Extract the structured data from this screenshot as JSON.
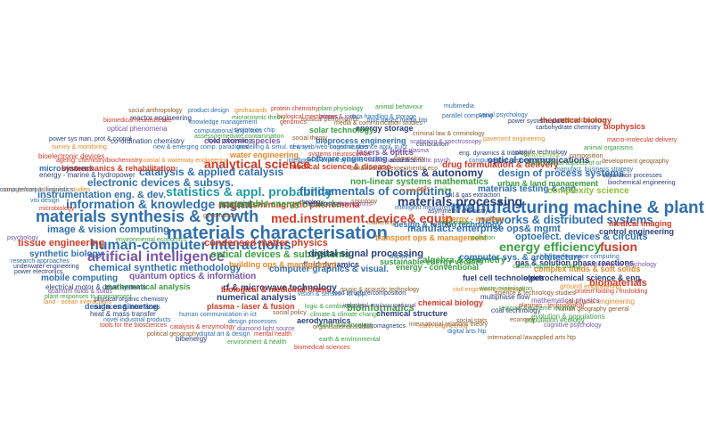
{
  "palette": {
    "blue": "#2f6fb0",
    "green": "#3a9e3f",
    "red": "#d43a25",
    "orange": "#e8892b",
    "purple": "#7a55a8",
    "teal": "#1e9aa5",
    "navy": "#2a3f7a",
    "lime": "#8bbf35",
    "pink": "#c64b8c",
    "brown": "#8b5a2b"
  },
  "words": [
    {
      "text": "materials characterisation",
      "color": "#2f6fb0"
    },
    {
      "text": "manufacturing machine & plant",
      "color": "#2f6fb0"
    },
    {
      "text": "materials synthesis & growth",
      "color": "#2f6fb0"
    },
    {
      "text": "artificial intelligence",
      "color": "#7a55a8"
    },
    {
      "text": "human-computer interactions",
      "color": "#2f6fb0"
    },
    {
      "text": "med.instrument.device& equip.",
      "color": "#d43a25"
    },
    {
      "text": "statistics & appl. probability",
      "color": "#1e9aa5"
    },
    {
      "text": "information & knowledge mgmt",
      "color": "#2f6fb0"
    },
    {
      "text": "networks & distributed systems",
      "color": "#2f6fb0"
    },
    {
      "text": "materials processing",
      "color": "#2a3f7a"
    },
    {
      "text": "fundamentals of computing",
      "color": "#2f6fb0"
    },
    {
      "text": "energy efficiency",
      "color": "#3a9e3f"
    },
    {
      "text": "analytical science",
      "color": "#d43a25"
    },
    {
      "text": "catalysis & applied catalysis",
      "color": "#2f6fb0"
    },
    {
      "text": "robotics & autonomy",
      "color": "#2a3f7a"
    },
    {
      "text": "electronic devices & subsys.",
      "color": "#2f6fb0"
    },
    {
      "text": "optoelect. devices & circuits",
      "color": "#2f6fb0"
    },
    {
      "text": "manufact. enterprise ops& mgmt",
      "color": "#2f6fb0"
    },
    {
      "text": "design of process systems",
      "color": "#2f6fb0"
    },
    {
      "text": "fusion",
      "color": "#d43a25"
    },
    {
      "text": "image & vision computing",
      "color": "#2f6fb0"
    },
    {
      "text": "condensed matter physics",
      "color": "#d43a25"
    },
    {
      "text": "chemical synthetic methodology",
      "color": "#2f6fb0"
    },
    {
      "text": "optical devices & subsystems",
      "color": "#3a9e3f"
    },
    {
      "text": "digital signal processing",
      "color": "#2a3f7a"
    },
    {
      "text": "magnetism/magnetic phenomena",
      "color": "#d43a25"
    },
    {
      "text": "sustainable energy networks",
      "color": "#3a9e3f"
    },
    {
      "text": "non-linear systems mathematics",
      "color": "#3a9e3f"
    },
    {
      "text": "materials testing & eng.",
      "color": "#2f6fb0"
    },
    {
      "text": "complexity science",
      "color": "#8bbf35"
    },
    {
      "text": "drug formulation & delivery",
      "color": "#d43a25"
    },
    {
      "text": "optical communications",
      "color": "#2a3f7a"
    },
    {
      "text": "instrumentation eng. & dev.",
      "color": "#2f6fb0"
    },
    {
      "text": "tissue engineering",
      "color": "#d43a25"
    },
    {
      "text": "synthetic biology",
      "color": "#2f6fb0"
    },
    {
      "text": "mobile computing",
      "color": "#2f6fb0"
    },
    {
      "text": "quantum optics & information",
      "color": "#7a55a8"
    },
    {
      "text": "computer graphics & visual.",
      "color": "#2f6fb0"
    },
    {
      "text": "algebra & geometry",
      "color": "#3a9e3f"
    },
    {
      "text": "computer sys. & architecture",
      "color": "#2f6fb0"
    },
    {
      "text": "gas & solution phase reactions",
      "color": "#2a3f7a"
    },
    {
      "text": "complex fluids & soft solids",
      "color": "#e8892b"
    },
    {
      "text": "fluid dynamics",
      "color": "#2a3f7a"
    },
    {
      "text": "building ops & management",
      "color": "#e8892b"
    },
    {
      "text": "sustainable energy vectors",
      "color": "#3a9e3f"
    },
    {
      "text": "fuel cell technologies",
      "color": "#2a3f7a"
    },
    {
      "text": "electrochemical science & eng.",
      "color": "#2a3f7a"
    },
    {
      "text": "medical imaging",
      "color": "#d43a25"
    },
    {
      "text": "control engineering",
      "color": "#2a3f7a"
    },
    {
      "text": "biomaterials",
      "color": "#d43a25"
    },
    {
      "text": "bioinformatics",
      "color": "#3a9e3f"
    },
    {
      "text": "numerical analysis",
      "color": "#2a3f7a"
    },
    {
      "text": "rf & microwave technology",
      "color": "#2a3f7a"
    },
    {
      "text": "biological & medicinal chem.",
      "color": "#d43a25"
    },
    {
      "text": "mathematical analysis",
      "color": "#3a9e3f"
    },
    {
      "text": "design engineering",
      "color": "#2f6fb0"
    },
    {
      "text": "plasma - laser & fusion",
      "color": "#d43a25"
    },
    {
      "text": "chemical structure",
      "color": "#2a3f7a"
    },
    {
      "text": "chemical biology",
      "color": "#d43a25"
    },
    {
      "text": "aerodynamics",
      "color": "#2a3f7a"
    },
    {
      "text": "energy - conventional",
      "color": "#3a9e3f"
    },
    {
      "text": "energy - nuclear",
      "color": "#e8892b"
    },
    {
      "text": "transport ops & management",
      "color": "#e8892b"
    },
    {
      "text": "design & testing technology",
      "color": "#2f6fb0"
    },
    {
      "text": "microsystems",
      "color": "#2f6fb0"
    },
    {
      "text": "biomechanics & rehabilitation",
      "color": "#d43a25"
    },
    {
      "text": "water engineering",
      "color": "#e8892b"
    },
    {
      "text": "medical science & disease",
      "color": "#d43a25"
    },
    {
      "text": "software engineering",
      "color": "#2f6fb0"
    },
    {
      "text": "urban & land management",
      "color": "#3a9e3f"
    },
    {
      "text": "energy storage",
      "color": "#2a3f7a"
    },
    {
      "text": "solar technology",
      "color": "#3a9e3f"
    },
    {
      "text": "bioprocess engineering",
      "color": "#2f6fb0"
    },
    {
      "text": "lasers & optics",
      "color": "#7a55a8"
    },
    {
      "text": "cold atomic species",
      "color": "#7a55a8"
    },
    {
      "text": "theoretical biology",
      "color": "#d43a25"
    },
    {
      "text": "multiphase flow",
      "color": "#2a3f7a"
    },
    {
      "text": "ground engineering",
      "color": "#e8892b"
    },
    {
      "text": "biophysics",
      "color": "#d43a25"
    },
    {
      "text": "heat & mass transfer",
      "color": "#2a3f7a"
    },
    {
      "text": "surfaces & interfaces",
      "color": "#2a3f7a"
    },
    {
      "text": "bioenergy",
      "color": "#2a3f7a"
    },
    {
      "text": "structural engineering",
      "color": "#e8892b"
    },
    {
      "text": "reactor engineering",
      "color": "#2a3f7a"
    },
    {
      "text": "optical phenomena",
      "color": "#7a55a8"
    },
    {
      "text": "co-ordination chemistry",
      "color": "#2a3f7a"
    },
    {
      "text": "bioelectronic devices",
      "color": "#d43a25"
    },
    {
      "text": "energy - marine & hydropower",
      "color": "#2a3f7a"
    },
    {
      "text": "electrical motor & drive systems",
      "color": "#2a3f7a"
    },
    {
      "text": "population ecology",
      "color": "#3a9e3f"
    },
    {
      "text": "evolution & populations",
      "color": "#3a9e3f"
    },
    {
      "text": "mathematical physics",
      "color": "#7a55a8"
    },
    {
      "text": "coal technology",
      "color": "#2a3f7a"
    },
    {
      "text": "cognitive science appl. in ict",
      "color": "#2f6fb0"
    },
    {
      "text": "combustion",
      "color": "#2a3f7a"
    },
    {
      "text": "eng. dynamics & tribology",
      "color": "#2a3f7a"
    },
    {
      "text": "particle technology",
      "color": "#2a3f7a"
    },
    {
      "text": "social psychology",
      "color": "#2f6fb0"
    },
    {
      "text": "parallel computing",
      "color": "#2f6fb0"
    },
    {
      "text": "multimedia",
      "color": "#2f6fb0"
    },
    {
      "text": "biochemical engineering",
      "color": "#2a3f7a"
    },
    {
      "text": "visi design",
      "color": "#2f6fb0"
    },
    {
      "text": "microbiology",
      "color": "#d43a25"
    },
    {
      "text": "psychology",
      "color": "#7a55a8"
    },
    {
      "text": "research approaches",
      "color": "#2f6fb0"
    },
    {
      "text": "underwater engineering",
      "color": "#2a3f7a"
    },
    {
      "text": "power electronics",
      "color": "#2a3f7a"
    },
    {
      "text": "quantum fluids & solids",
      "color": "#7a55a8"
    },
    {
      "text": "plant responses to environment",
      "color": "#3a9e3f"
    },
    {
      "text": "land - ocean interactions",
      "color": "#e8892b"
    },
    {
      "text": "physical organic chemistry",
      "color": "#2a3f7a"
    },
    {
      "text": "novel industrial products",
      "color": "#2f6fb0"
    },
    {
      "text": "tools for the biosciences",
      "color": "#d43a25"
    },
    {
      "text": "catalysis & enzymology",
      "color": "#d43a25"
    },
    {
      "text": "political geography",
      "color": "#8b5a2b"
    },
    {
      "text": "digital art & design",
      "color": "#2f6fb0"
    },
    {
      "text": "human communication in ict",
      "color": "#2f6fb0"
    },
    {
      "text": "social policy",
      "color": "#8b5a2b"
    },
    {
      "text": "design processes",
      "color": "#2f6fb0"
    },
    {
      "text": "diamond light source",
      "color": "#7a55a8"
    },
    {
      "text": "mental health",
      "color": "#d43a25"
    },
    {
      "text": "environment & health",
      "color": "#3a9e3f"
    },
    {
      "text": "earth & environmental",
      "color": "#3a9e3f"
    },
    {
      "text": "biomedical sciences",
      "color": "#d43a25"
    },
    {
      "text": "electromagnetics",
      "color": "#2a3f7a"
    },
    {
      "text": "earth engineering",
      "color": "#e8892b"
    },
    {
      "text": "digital arts htp",
      "color": "#2f6fb0"
    },
    {
      "text": "cognitive psychology",
      "color": "#7a55a8"
    },
    {
      "text": "international law",
      "color": "#8b5a2b"
    },
    {
      "text": "applied arts htp",
      "color": "#8b5a2b"
    },
    {
      "text": "social anthropology",
      "color": "#8b5a2b"
    },
    {
      "text": "product design",
      "color": "#2f6fb0"
    },
    {
      "text": "geohazards",
      "color": "#e8892b"
    },
    {
      "text": "protein chemistry",
      "color": "#d43a25"
    },
    {
      "text": "plant physiology",
      "color": "#3a9e3f"
    },
    {
      "text": "animal behaviour",
      "color": "#3a9e3f"
    },
    {
      "text": "biomedical neuroscience",
      "color": "#d43a25"
    },
    {
      "text": "knowledge management",
      "color": "#2f6fb0"
    },
    {
      "text": "genomics",
      "color": "#d43a25"
    },
    {
      "text": "musical performance",
      "color": "#8b5a2b"
    },
    {
      "text": "media & communication studies",
      "color": "#8b5a2b"
    },
    {
      "text": "power systems plant",
      "color": "#2a3f7a"
    },
    {
      "text": "macroeconomics",
      "color": "#8b5a2b"
    },
    {
      "text": "carbohydrate chemistry",
      "color": "#2a3f7a"
    },
    {
      "text": "computational linguistics",
      "color": "#2f6fb0"
    },
    {
      "text": "system on chip",
      "color": "#2f6fb0"
    },
    {
      "text": "pavement engineering",
      "color": "#e8892b"
    },
    {
      "text": "macro-molecular delivery",
      "color": "#d43a25"
    },
    {
      "text": "systems neuroscience",
      "color": "#d43a25"
    },
    {
      "text": "mathematical & statistic psych",
      "color": "#7a55a8"
    },
    {
      "text": "acoustics",
      "color": "#2a3f7a"
    },
    {
      "text": "computational methods & tools",
      "color": "#2f6fb0"
    },
    {
      "text": "mathematical aspects of or",
      "color": "#3a9e3f"
    },
    {
      "text": "development geography",
      "color": "#8b5a2b"
    },
    {
      "text": "manufact. business strategy",
      "color": "#2f6fb0"
    },
    {
      "text": "composition",
      "color": "#8b5a2b"
    },
    {
      "text": "animal organisms",
      "color": "#3a9e3f"
    },
    {
      "text": "survey & monitoring",
      "color": "#e8892b"
    },
    {
      "text": "new & emerging comp. paradigms",
      "color": "#2f6fb0"
    },
    {
      "text": "food processing",
      "color": "#2a3f7a"
    },
    {
      "text": "ageing: chemistry/biochemistry",
      "color": "#d43a25"
    },
    {
      "text": "management & business studies",
      "color": "#e8892b"
    },
    {
      "text": "scattering & spectroscopy",
      "color": "#7a55a8"
    },
    {
      "text": "intelligent measurement sys.",
      "color": "#2f6fb0"
    },
    {
      "text": "asymmetric chemistry",
      "color": "#2a3f7a"
    },
    {
      "text": "wind power",
      "color": "#3a9e3f"
    },
    {
      "text": "oil & gas extraction",
      "color": "#2a3f7a"
    },
    {
      "text": "separation processes",
      "color": "#2a3f7a"
    },
    {
      "text": "developmental psychology",
      "color": "#7a55a8"
    },
    {
      "text": "high performance computing",
      "color": "#2f6fb0"
    },
    {
      "text": "protein folding / misfolding",
      "color": "#d43a25"
    },
    {
      "text": "civil engineering materials",
      "color": "#e8892b"
    },
    {
      "text": "waste minimisation",
      "color": "#3a9e3f"
    },
    {
      "text": "carbon capture & storage",
      "color": "#3a9e3f"
    },
    {
      "text": "science & technology studies",
      "color": "#8b5a2b"
    },
    {
      "text": "human geography general",
      "color": "#8b5a2b"
    },
    {
      "text": "plasmas - technological",
      "color": "#d43a25"
    },
    {
      "text": "music & acoustic technology",
      "color": "#8b5a2b"
    },
    {
      "text": "food structure/composition",
      "color": "#2a3f7a"
    },
    {
      "text": "vision & senses - ict appl.",
      "color": "#2f6fb0"
    },
    {
      "text": "logic & combinatorics",
      "color": "#3a9e3f"
    },
    {
      "text": "industrial-org/occupational",
      "color": "#7a55a8"
    },
    {
      "text": "organisational studies",
      "color": "#8b5a2b"
    },
    {
      "text": "waste management",
      "color": "#3a9e3f"
    },
    {
      "text": "climate & climate change",
      "color": "#3a9e3f"
    },
    {
      "text": "marketing",
      "color": "#8b5a2b"
    },
    {
      "text": "displays",
      "color": "#2f6fb0"
    },
    {
      "text": "rheology",
      "color": "#2a3f7a"
    },
    {
      "text": "light-matter interactions",
      "color": "#7a55a8"
    },
    {
      "text": "sociology",
      "color": "#8b5a2b"
    },
    {
      "text": "pollution",
      "color": "#3a9e3f"
    },
    {
      "text": "coastal & waterway engineering",
      "color": "#e8892b"
    },
    {
      "text": "environmental economics",
      "color": "#3a9e3f"
    },
    {
      "text": "criminology",
      "color": "#8b5a2b"
    },
    {
      "text": "cells",
      "color": "#d43a25"
    },
    {
      "text": "governance",
      "color": "#8b5a2b"
    },
    {
      "text": "time-based media htp",
      "color": "#2f6fb0"
    },
    {
      "text": "data handling & storage",
      "color": "#2f6fb0"
    },
    {
      "text": "biological membranes",
      "color": "#d43a25"
    },
    {
      "text": "atoms & ions",
      "color": "#7a55a8"
    },
    {
      "text": "microcosmic theory",
      "color": "#3a9e3f"
    },
    {
      "text": "assess/remediate contamination",
      "color": "#3a9e3f"
    },
    {
      "text": "power sys man, prot & control",
      "color": "#2a3f7a"
    },
    {
      "text": "modelling & simul. of it sys.",
      "color": "#2f6fb0"
    },
    {
      "text": "new web/web-based studies",
      "color": "#2f6fb0"
    },
    {
      "text": "intelligent & expert systems",
      "color": "#2f6fb0"
    },
    {
      "text": "criminal law & criminology",
      "color": "#8b5a2b"
    },
    {
      "text": "social theory",
      "color": "#8b5a2b"
    },
    {
      "text": "fluid & plasma",
      "color": "#7a55a8"
    },
    {
      "text": "compute/corpus linguistics",
      "color": "#2f6fb0"
    },
    {
      "text": "behavioural & experimental eco",
      "color": "#8b5a2b"
    },
    {
      "text": "in vitro &",
      "color": "#e8892b"
    },
    {
      "text": "tribo",
      "color": "#8bbf35"
    },
    {
      "text": "reinforcement",
      "color": "#8bbf35"
    },
    {
      "text": "regional & extreme weather",
      "color": "#3a9e3f"
    },
    {
      "text": "international relations theory",
      "color": "#8b5a2b"
    },
    {
      "text": "social stats",
      "color": "#8b5a2b"
    },
    {
      "text": "economy",
      "color": "#8b5a2b"
    }
  ]
}
